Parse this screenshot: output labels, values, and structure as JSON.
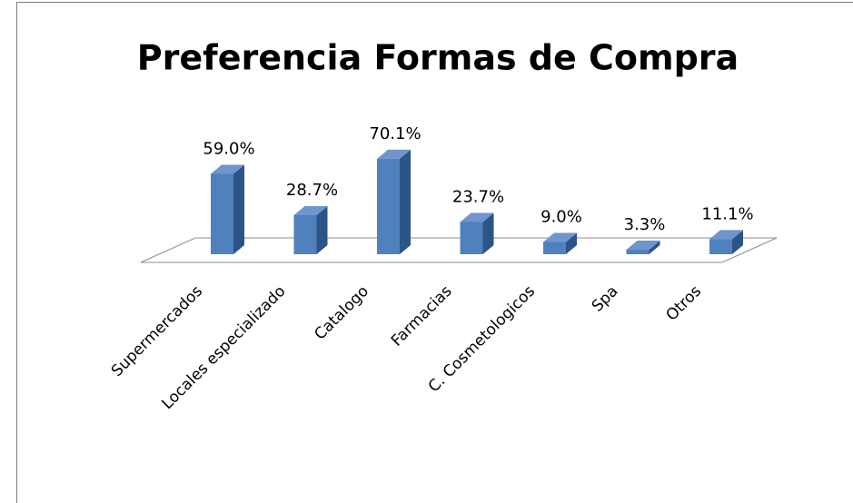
{
  "chart_data": {
    "type": "bar3d",
    "title": "Preferencia Formas de Compra",
    "categories": [
      "Supermercados",
      "Locales especializado",
      "Catalogo",
      "Farmacias",
      "C. Cosmetologicos",
      "Spa",
      "Otros"
    ],
    "values": [
      59.0,
      28.7,
      70.1,
      23.7,
      9.0,
      3.3,
      11.1
    ],
    "value_labels": [
      "59.0%",
      "28.7%",
      "70.1%",
      "23.7%",
      "9.0%",
      "3.3%",
      "11.1%"
    ],
    "color": "#4f81bd"
  }
}
